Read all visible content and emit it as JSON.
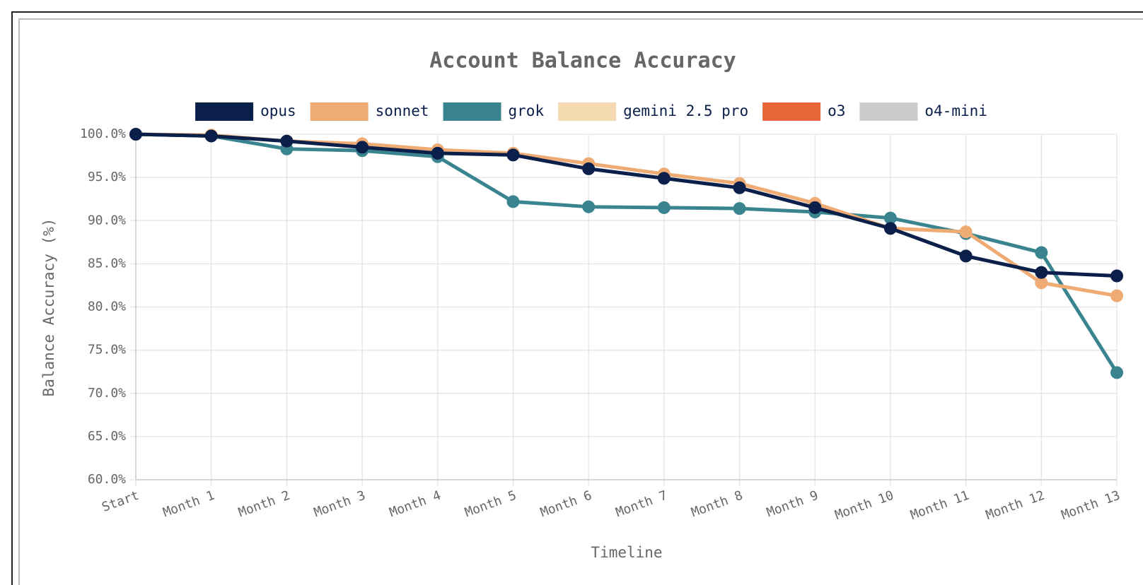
{
  "chart_data": {
    "type": "line",
    "title": "Account Balance Accuracy",
    "x_label": "Timeline",
    "y_label": "Balance Accuracy (%)",
    "categories": [
      "Start",
      "Month 1",
      "Month 2",
      "Month 3",
      "Month 4",
      "Month 5",
      "Month 6",
      "Month 7",
      "Month 8",
      "Month 9",
      "Month 10",
      "Month 11",
      "Month 12",
      "Month 13"
    ],
    "series": [
      {
        "name": "opus",
        "color": "#0b1f4b",
        "values": [
          100,
          99.8,
          99.2,
          98.5,
          97.8,
          97.6,
          96.0,
          94.9,
          93.8,
          91.5,
          89.1,
          85.9,
          84.0,
          83.6
        ]
      },
      {
        "name": "sonnet",
        "color": "#eeab74",
        "values": [
          100,
          99.9,
          99.2,
          98.9,
          98.2,
          97.8,
          96.6,
          95.4,
          94.3,
          92.0,
          89.1,
          88.7,
          82.8,
          81.3
        ]
      },
      {
        "name": "grok",
        "color": "#3a8490",
        "values": [
          100,
          99.8,
          98.3,
          98.1,
          97.4,
          92.2,
          91.6,
          91.5,
          91.4,
          91.0,
          90.3,
          88.5,
          86.3,
          72.4
        ]
      },
      {
        "name": "gemini 2.5 pro",
        "color": "#f5d9b0",
        "values": [
          100,
          null,
          null,
          null,
          null,
          null,
          null,
          null,
          null,
          null,
          null,
          null,
          null,
          null
        ]
      },
      {
        "name": "o3",
        "color": "#e8653a",
        "values": [
          null,
          null,
          null,
          null,
          null,
          null,
          null,
          null,
          null,
          null,
          null,
          null,
          null,
          null
        ]
      },
      {
        "name": "o4-mini",
        "color": "#cccccc",
        "values": [
          null,
          null,
          null,
          null,
          null,
          null,
          null,
          null,
          null,
          null,
          null,
          null,
          null,
          null
        ]
      }
    ],
    "ylim": [
      60,
      100
    ],
    "yticks": [
      {
        "value": 60,
        "label": "60.0%"
      },
      {
        "value": 65,
        "label": "65.0%"
      },
      {
        "value": 70,
        "label": "70.0%"
      },
      {
        "value": 75,
        "label": "75.0%"
      },
      {
        "value": 80,
        "label": "80.0%"
      },
      {
        "value": 85,
        "label": "85.0%"
      },
      {
        "value": 90,
        "label": "90.0%"
      },
      {
        "value": 95,
        "label": "95.0%"
      },
      {
        "value": 100,
        "label": "100.0%"
      }
    ],
    "grid": true,
    "legend": "top"
  }
}
